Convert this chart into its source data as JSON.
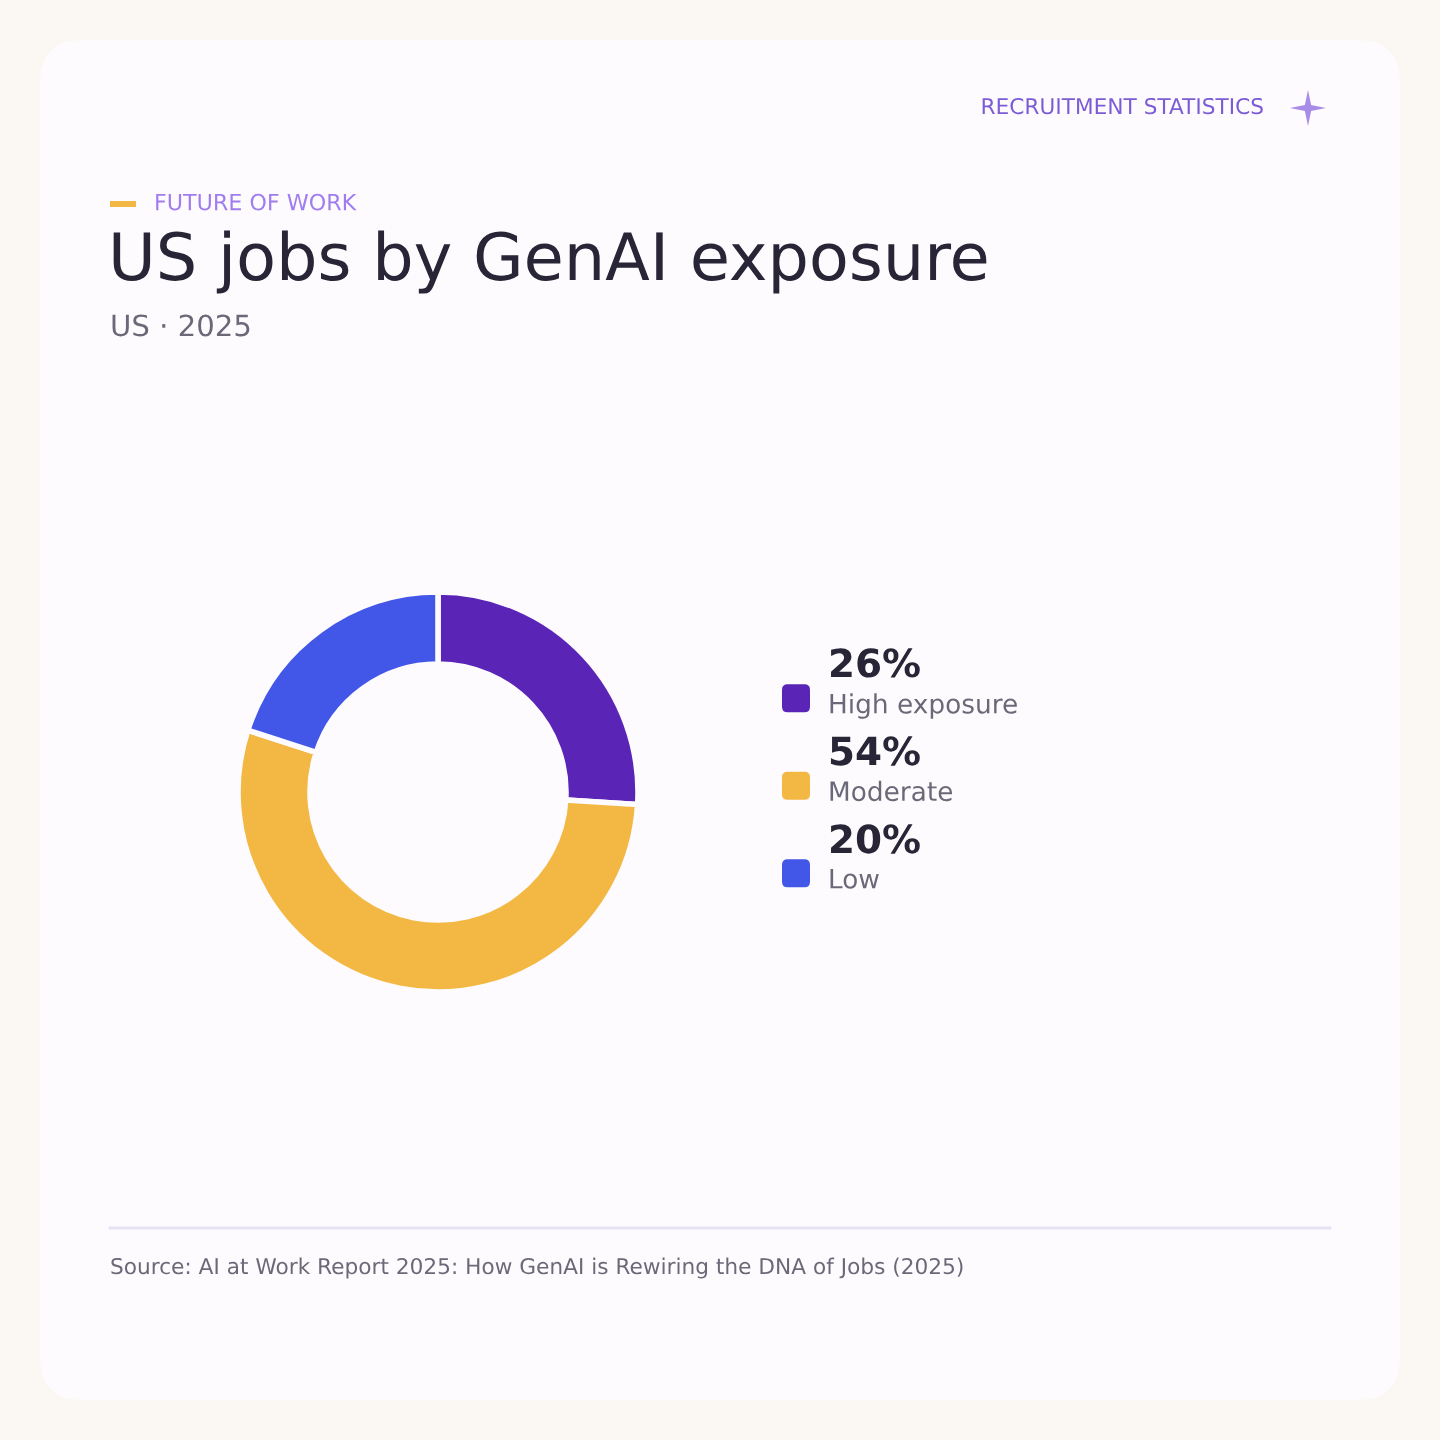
{
  "chart_data": {
    "type": "donut",
    "title": "US jobs by GenAI exposure",
    "subtitle": "US · 2025",
    "categories": [
      "High exposure",
      "Moderate",
      "Low"
    ],
    "values": [
      26,
      54,
      20
    ],
    "colors": [
      "#5a25b7",
      "#f3b843",
      "#4257e8"
    ],
    "value_labels": [
      "26%",
      "54%",
      "20%"
    ],
    "legend": "right",
    "annotations": [
      "RECRUITMENT STATISTICS",
      "FUTURE OF WORK",
      "Source: AI at Work Report 2025: How GenAI is Rewiring the DNA of Jobs (2025)"
    ]
  }
}
